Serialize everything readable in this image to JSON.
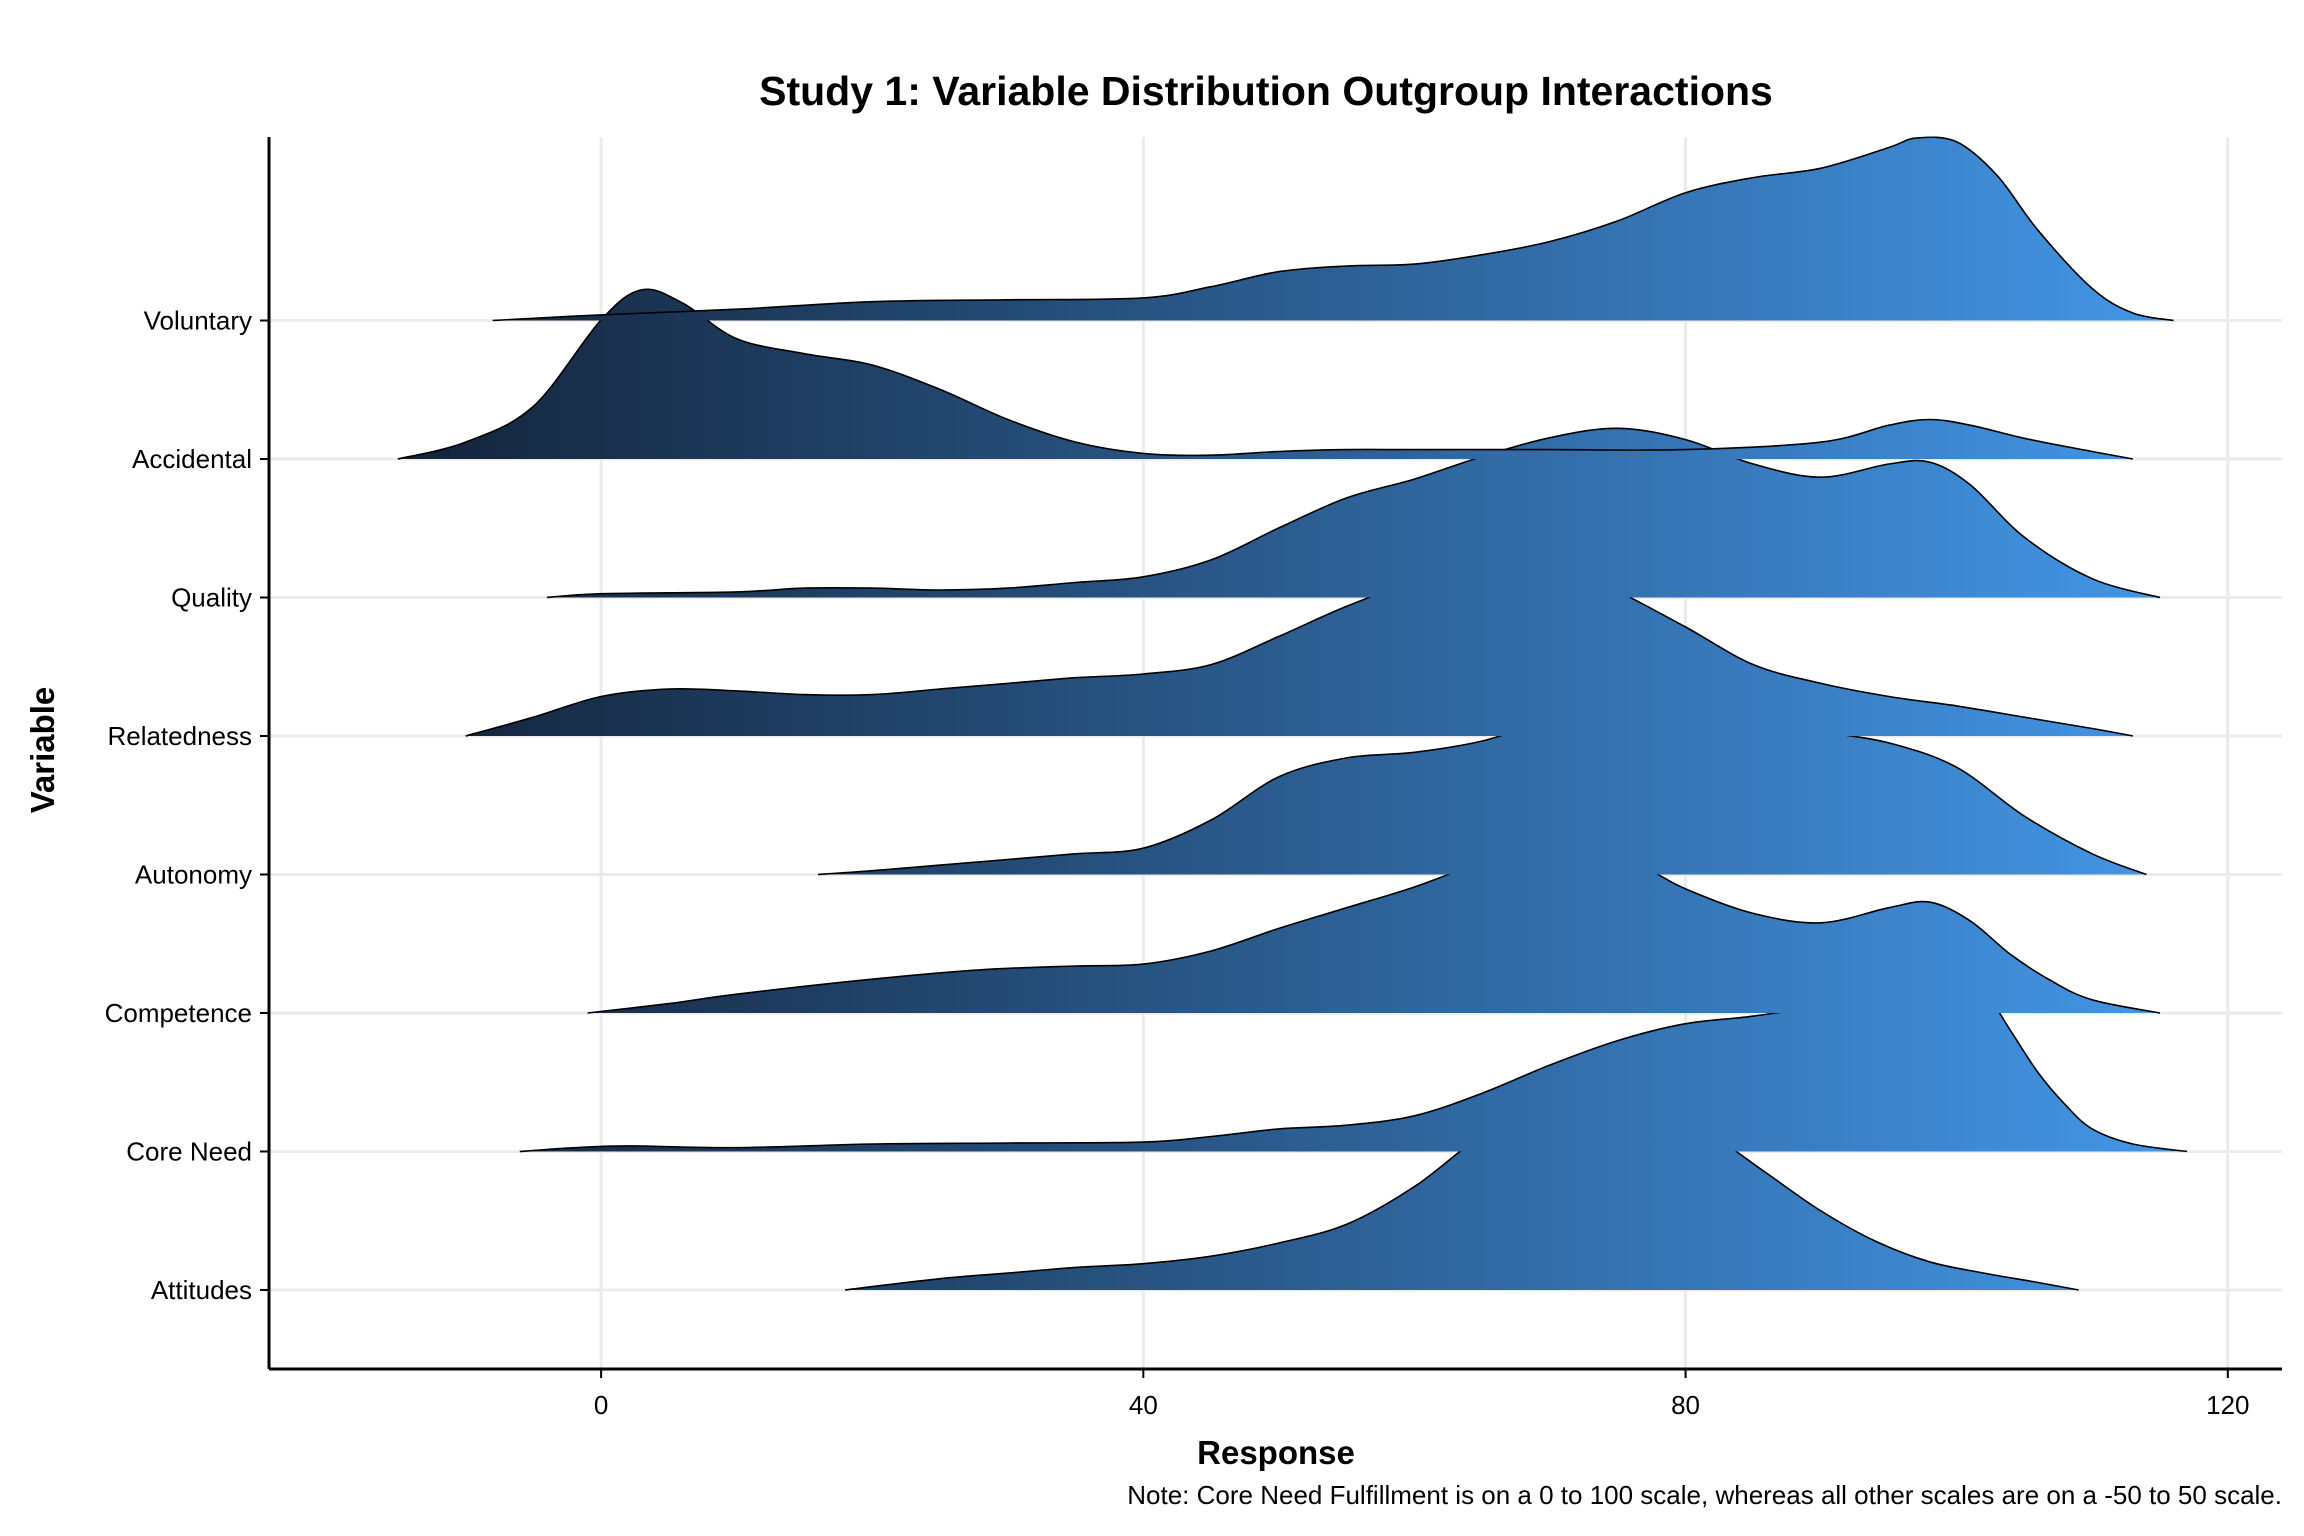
{
  "chart_data": {
    "type": "ridgeline",
    "title": "Study 1: Variable Distribution Outgroup Interactions",
    "xlabel": "Response",
    "ylabel": "Variable",
    "note": "Note: Core Need Fulfillment is on a 0 to 100 scale, whereas all other scales are on a -50 to 50 scale.",
    "xlim": [
      -24.5,
      124
    ],
    "x_ticks": [
      0,
      40,
      80,
      120
    ],
    "grid": true,
    "fill_gradient": {
      "low_color": "#132339",
      "high_color": "#4497E8",
      "range": [
        -15,
        117
      ]
    },
    "categories": [
      "Attitudes",
      "Core Need",
      "Competence",
      "Autonomy",
      "Relatedness",
      "Quality",
      "Accidental",
      "Voluntary"
    ],
    "series": [
      {
        "name": "Attitudes",
        "density": [
          [
            18,
            0
          ],
          [
            25,
            0.06
          ],
          [
            30,
            0.09
          ],
          [
            35,
            0.12
          ],
          [
            40,
            0.14
          ],
          [
            45,
            0.18
          ],
          [
            50,
            0.25
          ],
          [
            55,
            0.35
          ],
          [
            60,
            0.55
          ],
          [
            65,
            0.82
          ],
          [
            70,
            0.98
          ],
          [
            74,
            1.01
          ],
          [
            78,
            0.96
          ],
          [
            82,
            0.82
          ],
          [
            86,
            0.62
          ],
          [
            90,
            0.42
          ],
          [
            94,
            0.26
          ],
          [
            98,
            0.15
          ],
          [
            102,
            0.09
          ],
          [
            106,
            0.04
          ],
          [
            109,
            0
          ]
        ]
      },
      {
        "name": "Core Need",
        "density": [
          [
            -6,
            0
          ],
          [
            -2,
            0.02
          ],
          [
            2,
            0.03
          ],
          [
            10,
            0.02
          ],
          [
            20,
            0.04
          ],
          [
            30,
            0.045
          ],
          [
            40,
            0.05
          ],
          [
            45,
            0.08
          ],
          [
            50,
            0.12
          ],
          [
            55,
            0.14
          ],
          [
            60,
            0.19
          ],
          [
            65,
            0.31
          ],
          [
            70,
            0.46
          ],
          [
            75,
            0.59
          ],
          [
            80,
            0.68
          ],
          [
            85,
            0.72
          ],
          [
            90,
            0.78
          ],
          [
            95,
            0.89
          ],
          [
            98,
            0.96
          ],
          [
            100,
            0.97
          ],
          [
            102,
            0.86
          ],
          [
            104,
            0.64
          ],
          [
            106,
            0.42
          ],
          [
            108,
            0.25
          ],
          [
            110,
            0.12
          ],
          [
            113,
            0.04
          ],
          [
            117,
            0
          ]
        ]
      },
      {
        "name": "Competence",
        "density": [
          [
            -1,
            0
          ],
          [
            5,
            0.05
          ],
          [
            10,
            0.1
          ],
          [
            20,
            0.18
          ],
          [
            28,
            0.23
          ],
          [
            35,
            0.25
          ],
          [
            40,
            0.26
          ],
          [
            45,
            0.33
          ],
          [
            50,
            0.45
          ],
          [
            55,
            0.56
          ],
          [
            60,
            0.67
          ],
          [
            65,
            0.8
          ],
          [
            70,
            0.88
          ],
          [
            73,
            0.86
          ],
          [
            77,
            0.77
          ],
          [
            80,
            0.66
          ],
          [
            85,
            0.53
          ],
          [
            90,
            0.48
          ],
          [
            95,
            0.56
          ],
          [
            98,
            0.59
          ],
          [
            101,
            0.49
          ],
          [
            104,
            0.31
          ],
          [
            107,
            0.17
          ],
          [
            110,
            0.07
          ],
          [
            115,
            0
          ]
        ]
      },
      {
        "name": "Autonomy",
        "density": [
          [
            16,
            0
          ],
          [
            20,
            0.02
          ],
          [
            25,
            0.05
          ],
          [
            30,
            0.08
          ],
          [
            35,
            0.11
          ],
          [
            40,
            0.14
          ],
          [
            45,
            0.29
          ],
          [
            50,
            0.52
          ],
          [
            55,
            0.62
          ],
          [
            60,
            0.65
          ],
          [
            65,
            0.71
          ],
          [
            70,
            0.82
          ],
          [
            75,
            0.89
          ],
          [
            80,
            0.88
          ],
          [
            85,
            0.82
          ],
          [
            90,
            0.76
          ],
          [
            95,
            0.7
          ],
          [
            100,
            0.57
          ],
          [
            105,
            0.31
          ],
          [
            110,
            0.11
          ],
          [
            114,
            0
          ]
        ]
      },
      {
        "name": "Relatedness",
        "density": [
          [
            -10,
            0
          ],
          [
            -5,
            0.1
          ],
          [
            0,
            0.21
          ],
          [
            5,
            0.25
          ],
          [
            10,
            0.24
          ],
          [
            15,
            0.22
          ],
          [
            20,
            0.22
          ],
          [
            25,
            0.25
          ],
          [
            30,
            0.28
          ],
          [
            35,
            0.31
          ],
          [
            40,
            0.33
          ],
          [
            45,
            0.38
          ],
          [
            50,
            0.53
          ],
          [
            55,
            0.69
          ],
          [
            60,
            0.82
          ],
          [
            65,
            0.89
          ],
          [
            68,
            0.9
          ],
          [
            72,
            0.86
          ],
          [
            75,
            0.77
          ],
          [
            80,
            0.58
          ],
          [
            85,
            0.38
          ],
          [
            90,
            0.28
          ],
          [
            95,
            0.21
          ],
          [
            100,
            0.16
          ],
          [
            105,
            0.1
          ],
          [
            110,
            0.04
          ],
          [
            113,
            0
          ]
        ]
      },
      {
        "name": "Quality",
        "density": [
          [
            -4,
            0
          ],
          [
            0,
            0.02
          ],
          [
            10,
            0.03
          ],
          [
            15,
            0.05
          ],
          [
            20,
            0.05
          ],
          [
            25,
            0.04
          ],
          [
            30,
            0.05
          ],
          [
            35,
            0.08
          ],
          [
            40,
            0.11
          ],
          [
            45,
            0.2
          ],
          [
            50,
            0.37
          ],
          [
            55,
            0.53
          ],
          [
            60,
            0.63
          ],
          [
            65,
            0.75
          ],
          [
            70,
            0.85
          ],
          [
            75,
            0.9
          ],
          [
            80,
            0.84
          ],
          [
            85,
            0.71
          ],
          [
            90,
            0.64
          ],
          [
            95,
            0.71
          ],
          [
            98,
            0.72
          ],
          [
            101,
            0.6
          ],
          [
            105,
            0.32
          ],
          [
            110,
            0.1
          ],
          [
            115,
            0
          ]
        ]
      },
      {
        "name": "Accidental",
        "density": [
          [
            -15,
            0
          ],
          [
            -10,
            0.09
          ],
          [
            -5,
            0.28
          ],
          [
            0,
            0.74
          ],
          [
            3,
            0.9
          ],
          [
            6,
            0.83
          ],
          [
            10,
            0.64
          ],
          [
            15,
            0.56
          ],
          [
            20,
            0.5
          ],
          [
            25,
            0.37
          ],
          [
            30,
            0.21
          ],
          [
            35,
            0.09
          ],
          [
            40,
            0.03
          ],
          [
            45,
            0.02
          ],
          [
            50,
            0.04
          ],
          [
            55,
            0.05
          ],
          [
            60,
            0.05
          ],
          [
            70,
            0.05
          ],
          [
            80,
            0.05
          ],
          [
            90,
            0.09
          ],
          [
            95,
            0.18
          ],
          [
            98,
            0.21
          ],
          [
            101,
            0.18
          ],
          [
            105,
            0.11
          ],
          [
            110,
            0.04
          ],
          [
            113,
            0
          ]
        ]
      },
      {
        "name": "Voluntary",
        "density": [
          [
            -8,
            0
          ],
          [
            0,
            0.03
          ],
          [
            10,
            0.06
          ],
          [
            20,
            0.1
          ],
          [
            30,
            0.11
          ],
          [
            40,
            0.12
          ],
          [
            45,
            0.18
          ],
          [
            50,
            0.26
          ],
          [
            55,
            0.29
          ],
          [
            60,
            0.3
          ],
          [
            65,
            0.35
          ],
          [
            70,
            0.42
          ],
          [
            75,
            0.53
          ],
          [
            80,
            0.68
          ],
          [
            85,
            0.76
          ],
          [
            90,
            0.81
          ],
          [
            95,
            0.92
          ],
          [
            97,
            0.97
          ],
          [
            100,
            0.95
          ],
          [
            103,
            0.77
          ],
          [
            106,
            0.48
          ],
          [
            110,
            0.17
          ],
          [
            113,
            0.04
          ],
          [
            116,
            0
          ]
        ]
      }
    ]
  }
}
